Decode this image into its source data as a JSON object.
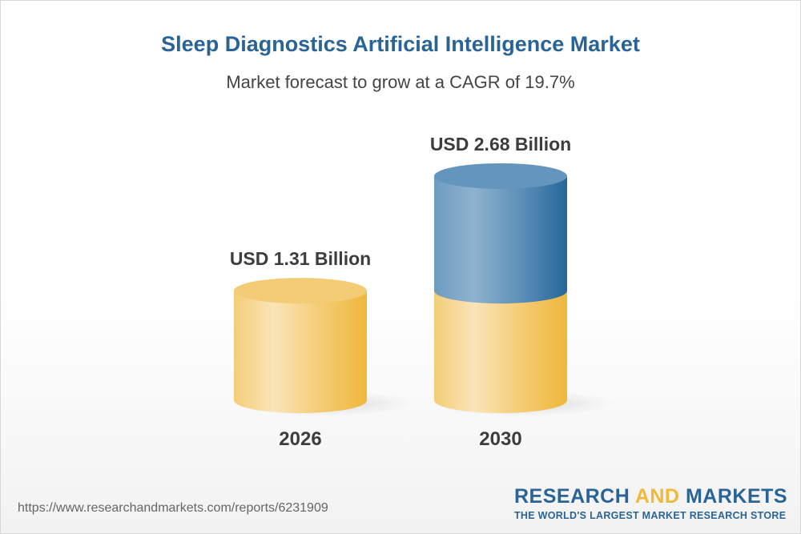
{
  "header": {
    "title": "Sleep Diagnostics Artificial Intelligence Market",
    "subtitle": "Market forecast to grow at a CAGR of 19.7%"
  },
  "chart_data": {
    "type": "bar",
    "style": "3d-cylinder",
    "title": "Sleep Diagnostics Artificial Intelligence Market",
    "subtitle": "Market forecast to grow at a CAGR of 19.7%",
    "categories": [
      "2026",
      "2030"
    ],
    "values": [
      1.31,
      2.68
    ],
    "unit": "USD Billion",
    "data_labels": [
      "USD 1.31 Billion",
      "USD 2.68 Billion"
    ],
    "grid": false,
    "colors": {
      "base": "#f0b93a",
      "growth": "#2a6496"
    }
  },
  "footer": {
    "url": "https://www.researchandmarkets.com/reports/6231909",
    "logo_word1": "RESEARCH",
    "logo_word2": "AND",
    "logo_word3": "MARKETS",
    "logo_tagline": "THE WORLD'S LARGEST MARKET RESEARCH STORE"
  }
}
